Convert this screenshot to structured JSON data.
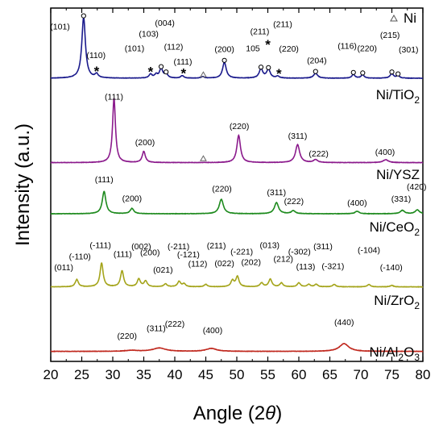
{
  "chart_data": {
    "type": "line",
    "xlabel_prefix": "Angle (2",
    "xlabel_theta": "θ",
    "xlabel_suffix": ")",
    "ylabel": "Intensity (a.u.)",
    "xlim": [
      20,
      80
    ],
    "x_ticks": [
      "20",
      "25",
      "30",
      "35",
      "40",
      "45",
      "50",
      "55",
      "60",
      "65",
      "70",
      "75",
      "80"
    ],
    "legend": {
      "text": "Ni",
      "marker": "triangle",
      "placement": "top-right"
    },
    "series": [
      {
        "id": "tio2",
        "name_base": "Ni/TiO",
        "name_sub": "2",
        "color": "#1a1a8c",
        "baseline": 0.5,
        "noise": 0.035,
        "peaks": [
          [
            25.3,
            12.6,
            0.35
          ],
          [
            27.4,
            0.8,
            0.3
          ],
          [
            36.1,
            0.8,
            0.3
          ],
          [
            37.0,
            0.7,
            0.3
          ],
          [
            37.8,
            2.0,
            0.3
          ],
          [
            38.6,
            0.9,
            0.3
          ],
          [
            41.2,
            0.5,
            0.3
          ],
          [
            44.5,
            0.3,
            0.3
          ],
          [
            48.0,
            3.3,
            0.35
          ],
          [
            53.9,
            1.9,
            0.35
          ],
          [
            55.1,
            1.8,
            0.35
          ],
          [
            56.6,
            0.4,
            0.3
          ],
          [
            62.7,
            1.0,
            0.4
          ],
          [
            68.8,
            0.8,
            0.3
          ],
          [
            70.3,
            0.7,
            0.3
          ],
          [
            75.0,
            0.9,
            0.35
          ],
          [
            76.0,
            0.5,
            0.3
          ]
        ],
        "labels": [
          {
            "text": "(101)",
            "x": 21.5,
            "y": 10.6
          },
          {
            "text": "(110)",
            "x": 27.3,
            "y": 4.7
          },
          {
            "text": "(101)",
            "x": 33.5,
            "y": 6.1
          },
          {
            "text": "(103)",
            "x": 35.8,
            "y": 9.1
          },
          {
            "text": "(004)",
            "x": 38.4,
            "y": 11.3
          },
          {
            "text": "(112)",
            "x": 39.8,
            "y": 6.4
          },
          {
            "text": "(111)",
            "x": 41.3,
            "y": 3.3
          },
          {
            "text": "(200)",
            "x": 48.0,
            "y": 5.9
          },
          {
            "text": "105",
            "x": 52.6,
            "y": 6.1
          },
          {
            "text": "(211)",
            "x": 53.7,
            "y": 9.6
          },
          {
            "text": "(211)",
            "x": 57.4,
            "y": 11.1
          },
          {
            "text": "(220)",
            "x": 58.4,
            "y": 6.0
          },
          {
            "text": "(204)",
            "x": 62.9,
            "y": 3.6
          },
          {
            "text": "(116)",
            "x": 67.8,
            "y": 6.6
          },
          {
            "text": "(220)",
            "x": 71.0,
            "y": 6.1
          },
          {
            "text": "(215)",
            "x": 74.7,
            "y": 8.8
          },
          {
            "text": "(301)",
            "x": 77.7,
            "y": 5.8
          }
        ],
        "circles": [
          [
            25.3,
            13.4
          ],
          [
            37.8,
            2.9
          ],
          [
            38.6,
            1.8
          ],
          [
            48.0,
            4.2
          ],
          [
            53.9,
            2.8
          ],
          [
            55.1,
            2.7
          ],
          [
            62.7,
            1.9
          ],
          [
            68.8,
            1.7
          ],
          [
            70.3,
            1.6
          ],
          [
            75.0,
            1.8
          ],
          [
            76.0,
            1.4
          ]
        ],
        "stars": [
          [
            27.4,
            2.0
          ],
          [
            36.1,
            1.9
          ],
          [
            41.4,
            1.6
          ],
          [
            55.0,
            7.5
          ],
          [
            56.8,
            1.5
          ]
        ],
        "triangles": [
          [
            44.6,
            1.3
          ]
        ]
      },
      {
        "id": "ysz",
        "name_base": "Ni/YSZ",
        "name_sub": "",
        "color": "#8b1a8c",
        "baseline": 0.4,
        "noise": 0.035,
        "peaks": [
          [
            30.2,
            13.3,
            0.28
          ],
          [
            35.0,
            2.3,
            0.3
          ],
          [
            50.3,
            5.6,
            0.35
          ],
          [
            59.8,
            3.7,
            0.4
          ],
          [
            62.7,
            0.6,
            0.4
          ],
          [
            74.0,
            0.6,
            0.5
          ]
        ],
        "labels": [
          {
            "text": "(111)",
            "x": 30.2,
            "y": 13.4
          },
          {
            "text": "(200)",
            "x": 35.2,
            "y": 4.0
          },
          {
            "text": "(220)",
            "x": 50.4,
            "y": 7.3
          },
          {
            "text": "(311)",
            "x": 59.8,
            "y": 5.3
          },
          {
            "text": "(222)",
            "x": 63.2,
            "y": 1.7
          },
          {
            "text": "(400)",
            "x": 73.9,
            "y": 2.0
          }
        ],
        "circles": [],
        "stars": [],
        "triangles": [
          [
            44.6,
            1.3
          ]
        ]
      },
      {
        "id": "ceo2",
        "name_base": "Ni/CeO",
        "name_sub": "2",
        "color": "#1d8a1d",
        "baseline": 0.5,
        "noise": 0.035,
        "peaks": [
          [
            28.6,
            4.6,
            0.35
          ],
          [
            33.1,
            1.1,
            0.35
          ],
          [
            47.5,
            3.0,
            0.4
          ],
          [
            56.4,
            2.3,
            0.4
          ],
          [
            59.1,
            0.6,
            0.4
          ],
          [
            69.4,
            0.5,
            0.4
          ],
          [
            76.7,
            0.7,
            0.4
          ],
          [
            79.1,
            0.8,
            0.4
          ]
        ],
        "labels": [
          {
            "text": "(111)",
            "x": 28.6,
            "y": 7.0
          },
          {
            "text": "(200)",
            "x": 33.1,
            "y": 3.1
          },
          {
            "text": "(220)",
            "x": 47.6,
            "y": 5.1
          },
          {
            "text": "(311)",
            "x": 56.4,
            "y": 4.3
          },
          {
            "text": "(222)",
            "x": 59.2,
            "y": 2.5
          },
          {
            "text": "(400)",
            "x": 69.4,
            "y": 2.2
          },
          {
            "text": "(331)",
            "x": 76.5,
            "y": 3.0
          },
          {
            "text": "(420)",
            "x": 79.0,
            "y": 5.5
          }
        ],
        "circles": [],
        "stars": [],
        "triangles": []
      },
      {
        "id": "zro2",
        "name_base": "Ni/ZrO",
        "name_sub": "2",
        "color": "#a4a41a",
        "baseline": 0.4,
        "noise": 0.035,
        "peaks": [
          [
            24.2,
            1.5,
            0.3
          ],
          [
            28.2,
            4.9,
            0.3
          ],
          [
            31.5,
            3.3,
            0.3
          ],
          [
            34.2,
            1.6,
            0.3
          ],
          [
            35.3,
            1.2,
            0.3
          ],
          [
            38.5,
            0.6,
            0.3
          ],
          [
            40.7,
            1.1,
            0.3
          ],
          [
            41.5,
            0.6,
            0.3
          ],
          [
            45.0,
            0.5,
            0.3
          ],
          [
            49.3,
            1.3,
            0.3
          ],
          [
            50.1,
            2.1,
            0.3
          ],
          [
            54.0,
            0.8,
            0.3
          ],
          [
            55.4,
            1.6,
            0.3
          ],
          [
            57.2,
            0.8,
            0.3
          ],
          [
            60.0,
            0.8,
            0.3
          ],
          [
            61.6,
            0.5,
            0.3
          ],
          [
            62.8,
            0.5,
            0.3
          ],
          [
            65.7,
            0.5,
            0.3
          ],
          [
            71.3,
            0.5,
            0.3
          ],
          [
            75.0,
            0.3,
            0.3
          ]
        ],
        "labels": [
          {
            "text": "(011)",
            "x": 22.1,
            "y": 3.8
          },
          {
            "text": "(-110)",
            "x": 24.7,
            "y": 6.1
          },
          {
            "text": "(-111)",
            "x": 28.0,
            "y": 8.4
          },
          {
            "text": "(111)",
            "x": 31.6,
            "y": 6.6
          },
          {
            "text": "(002)",
            "x": 34.6,
            "y": 8.2
          },
          {
            "text": "(200)",
            "x": 36.0,
            "y": 6.9
          },
          {
            "text": "(021)",
            "x": 38.1,
            "y": 3.3
          },
          {
            "text": "(-211)",
            "x": 40.6,
            "y": 8.2
          },
          {
            "text": "(-121)",
            "x": 42.2,
            "y": 6.5
          },
          {
            "text": "(112)",
            "x": 43.7,
            "y": 4.6
          },
          {
            "text": "(211)",
            "x": 46.7,
            "y": 8.3
          },
          {
            "text": "(-221)",
            "x": 50.8,
            "y": 7.1
          },
          {
            "text": "(022)",
            "x": 48.0,
            "y": 4.7
          },
          {
            "text": "(202)",
            "x": 52.3,
            "y": 4.9
          },
          {
            "text": "(013)",
            "x": 55.3,
            "y": 8.4
          },
          {
            "text": "(212)",
            "x": 57.5,
            "y": 5.6
          },
          {
            "text": "(-302)",
            "x": 60.1,
            "y": 7.1
          },
          {
            "text": "(113)",
            "x": 61.1,
            "y": 4.0
          },
          {
            "text": "(311)",
            "x": 63.9,
            "y": 8.2
          },
          {
            "text": "(-321)",
            "x": 65.5,
            "y": 4.1
          },
          {
            "text": "(-104)",
            "x": 71.3,
            "y": 7.4
          },
          {
            "text": "(-140)",
            "x": 74.9,
            "y": 3.8
          }
        ],
        "circles": [],
        "stars": [],
        "triangles": []
      },
      {
        "id": "al2o3",
        "name_base": "Ni/Al",
        "name_sub": "2",
        "name_tail": "O",
        "name_sub2": "3",
        "color": "#c0281e",
        "baseline": 0.4,
        "noise": 0.035,
        "peaks": [
          [
            33.0,
            0.2,
            1.2
          ],
          [
            37.5,
            0.7,
            1.2
          ],
          [
            45.9,
            0.6,
            1.0
          ],
          [
            67.3,
            1.6,
            0.9
          ]
        ],
        "labels": [
          {
            "text": "(220)",
            "x": 32.3,
            "y": 3.0
          },
          {
            "text": "(311)",
            "x": 37.0,
            "y": 4.6
          },
          {
            "text": "(222)",
            "x": 40.0,
            "y": 5.5
          },
          {
            "text": "(400)",
            "x": 46.1,
            "y": 4.2
          },
          {
            "text": "(440)",
            "x": 67.3,
            "y": 5.8
          }
        ],
        "circles": [],
        "stars": [],
        "triangles": []
      }
    ]
  }
}
